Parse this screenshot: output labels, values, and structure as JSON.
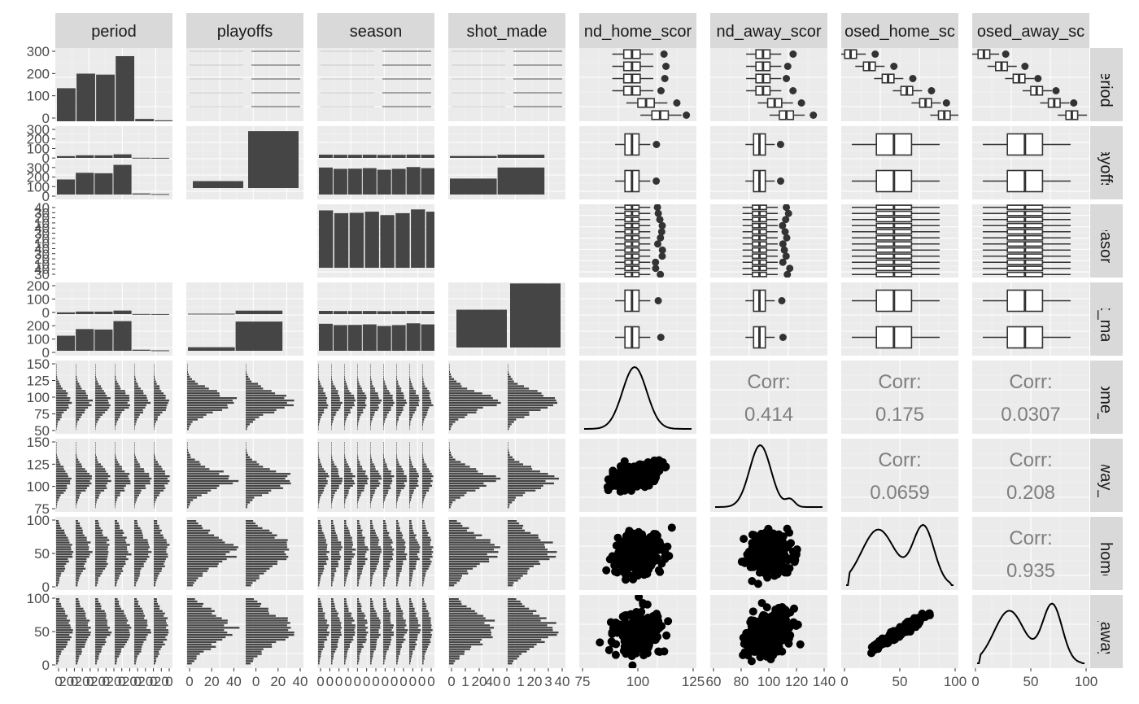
{
  "chart_data": {
    "type": "pairs",
    "variables": [
      "period",
      "playoffs",
      "season",
      "shot_made",
      "round_home_score",
      "round_away_score",
      "posed_home_score",
      "posed_away_score"
    ],
    "column_strips": [
      "period",
      "playoffs",
      "season",
      "shot_made",
      "nd_home_scor",
      "nd_away_scor",
      "osed_home_sc",
      "osed_away_sc"
    ],
    "row_strips": [
      "period",
      "playoffs",
      "season",
      "hot_mac",
      "_home_s",
      "_away_s",
      "d_home",
      "d_away"
    ],
    "y_ticks": [
      [
        "0",
        "100",
        "200",
        "300"
      ],
      [
        "300",
        "200",
        "100",
        "0",
        "300",
        "200",
        "100",
        "0"
      ],
      [
        "40",
        "30",
        "20",
        "10",
        "40",
        "30",
        "20",
        "10",
        "40",
        "30",
        "20",
        "10",
        "40",
        "30"
      ],
      [
        "200",
        "100",
        "0",
        "200",
        "100",
        "0"
      ],
      [
        "50",
        "75",
        "100",
        "125",
        "150"
      ],
      [
        "75",
        "100",
        "125",
        "150"
      ],
      [
        "0",
        "50",
        "100"
      ],
      [
        "0",
        "50",
        "100"
      ]
    ],
    "x_ticks": [
      [
        "0",
        "20",
        "0",
        "20",
        "0",
        "20",
        "0",
        "20",
        "0",
        "20",
        "0",
        "20",
        "0",
        "20",
        "0"
      ],
      [
        "0",
        "20",
        "40",
        "0",
        "20",
        "40"
      ],
      [
        "0",
        "0",
        "0",
        "0",
        "0",
        "0",
        "0",
        "0",
        "0",
        "0",
        "0",
        "0",
        "0"
      ],
      [
        "0",
        "1",
        "20",
        "40",
        "0",
        "1",
        "20",
        "3",
        "40"
      ],
      [
        "75",
        "100",
        "125"
      ],
      [
        "60",
        "80",
        "100",
        "120",
        "140"
      ],
      [
        "0",
        "50",
        "100"
      ],
      [
        "0",
        "50",
        "100"
      ]
    ],
    "period_counts": [
      170,
      245,
      240,
      335,
      12,
      5
    ],
    "playoffs_counts": [
      40,
      330
    ],
    "shot_made_counts": [
      180,
      305
    ],
    "season_counts": [
      305,
      290,
      292,
      298,
      280,
      290,
      310,
      298
    ],
    "correlations": [
      {
        "row": 4,
        "col": 5,
        "label": "Corr:",
        "value": "0.414"
      },
      {
        "row": 4,
        "col": 6,
        "label": "Corr:",
        "value": "0.175"
      },
      {
        "row": 4,
        "col": 7,
        "label": "Corr:",
        "value": "0.0307"
      },
      {
        "row": 5,
        "col": 6,
        "label": "Corr:",
        "value": "0.0659"
      },
      {
        "row": 5,
        "col": 7,
        "label": "Corr:",
        "value": "0.208"
      },
      {
        "row": 6,
        "col": 7,
        "label": "Corr:",
        "value": "0.935"
      }
    ]
  }
}
